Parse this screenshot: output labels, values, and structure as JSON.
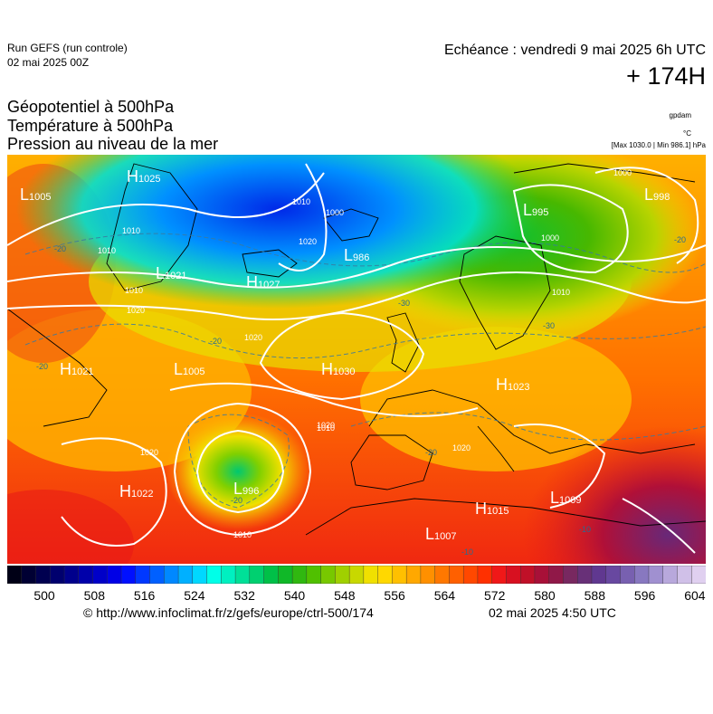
{
  "header": {
    "run_name": "Run GEFS (run controle)",
    "run_date": "02 mai 2025 00Z",
    "valid_time": "Echéance : vendredi 9 mai 2025 6h UTC",
    "forecast_range": "+ 174H"
  },
  "titles": {
    "line1": "Géopotentiel à 500hPa",
    "line2": "Température à 500hPa",
    "line3": "Pression au niveau de la mer"
  },
  "units": {
    "geopotential": "gpdam",
    "temperature": "°C",
    "pressure_range": "[Max 1030.0 | Min 986.1] hPa"
  },
  "pressure_centers": [
    {
      "type": "H",
      "value": "1025"
    },
    {
      "type": "L",
      "value": "1005"
    },
    {
      "type": "L",
      "value": "1021"
    },
    {
      "type": "H",
      "value": "1027"
    },
    {
      "type": "L",
      "value": "986"
    },
    {
      "type": "L",
      "value": "995"
    },
    {
      "type": "L",
      "value": "998"
    },
    {
      "type": "H",
      "value": "1021"
    },
    {
      "type": "L",
      "value": "1005"
    },
    {
      "type": "H",
      "value": "1030"
    },
    {
      "type": "H",
      "value": "1023"
    },
    {
      "type": "H",
      "value": "1022"
    },
    {
      "type": "L",
      "value": "996"
    },
    {
      "type": "H",
      "value": "1015"
    },
    {
      "type": "L",
      "value": "1009"
    },
    {
      "type": "L",
      "value": "1007"
    }
  ],
  "isobar_labels": [
    "1010",
    "1000",
    "1020",
    "1010",
    "1020",
    "1000",
    "1020",
    "1020",
    "1020",
    "1010",
    "1010",
    "1000",
    "1010",
    "1010",
    "1010",
    "1020"
  ],
  "temperature_labels": [
    "-20",
    "-30",
    "-20",
    "-20",
    "-20",
    "-30",
    "-20",
    "-10",
    "-10",
    "-20"
  ],
  "colorbar": {
    "colors": [
      "#000016",
      "#000033",
      "#000050",
      "#00006e",
      "#00008c",
      "#0000aa",
      "#0000c8",
      "#0000e6",
      "#0010ff",
      "#0038ff",
      "#0060ff",
      "#0088ff",
      "#00b0ff",
      "#00d8ff",
      "#00ffe8",
      "#00f0c0",
      "#00e098",
      "#00d070",
      "#00c048",
      "#10b828",
      "#30b810",
      "#50c000",
      "#78c800",
      "#a0d000",
      "#c8d800",
      "#f0e000",
      "#ffd800",
      "#ffc000",
      "#ffa800",
      "#ff9000",
      "#ff7800",
      "#ff6000",
      "#ff4800",
      "#ff3000",
      "#f01818",
      "#d81020",
      "#c01028",
      "#a81038",
      "#901848",
      "#782860",
      "#683078",
      "#603890",
      "#6848a0",
      "#7860b0",
      "#8878c0",
      "#a090d0",
      "#b8a8dc",
      "#d0c0e8",
      "#e0d0f0"
    ],
    "ticks": [
      "500",
      "508",
      "516",
      "524",
      "532",
      "540",
      "548",
      "556",
      "564",
      "572",
      "580",
      "588",
      "596",
      "604"
    ]
  },
  "footer": {
    "source": "© http://www.infoclimat.fr/z/gefs/europe/ctrl-500/174",
    "generated": "02 mai 2025  4:50 UTC"
  }
}
